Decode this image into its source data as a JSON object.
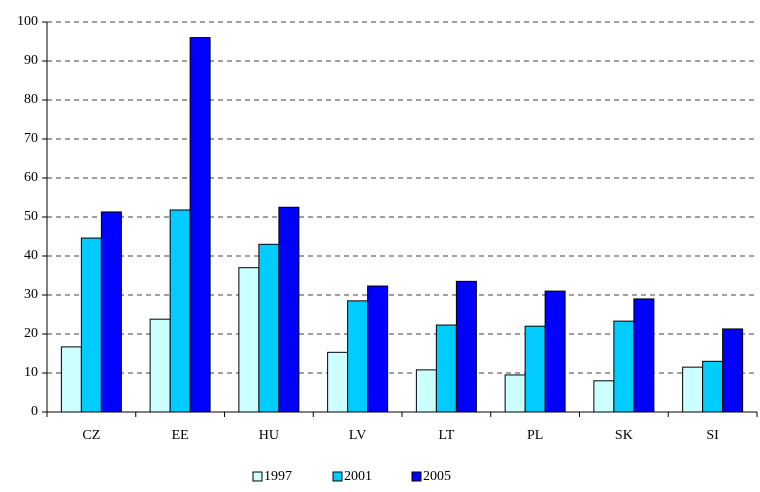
{
  "chart_data": {
    "type": "bar",
    "categories": [
      "CZ",
      "EE",
      "HU",
      "LV",
      "LT",
      "PL",
      "SK",
      "SI"
    ],
    "series": [
      {
        "name": "1997",
        "color": "#ccffff",
        "values": [
          16.7,
          23.8,
          37,
          15.3,
          10.8,
          9.5,
          8,
          11.5
        ]
      },
      {
        "name": "2001",
        "color": "#00ccff",
        "values": [
          44.6,
          51.8,
          43,
          28.5,
          22.3,
          22,
          23.3,
          13
        ]
      },
      {
        "name": "2005",
        "color": "#0000ff",
        "values": [
          51.3,
          96,
          52.5,
          32.3,
          33.5,
          31,
          29,
          21.3
        ]
      }
    ],
    "ylim": [
      0,
      100
    ],
    "yticks": [
      0,
      10,
      20,
      30,
      40,
      50,
      60,
      70,
      80,
      90,
      100
    ],
    "grid": true,
    "legend": "bottom"
  }
}
